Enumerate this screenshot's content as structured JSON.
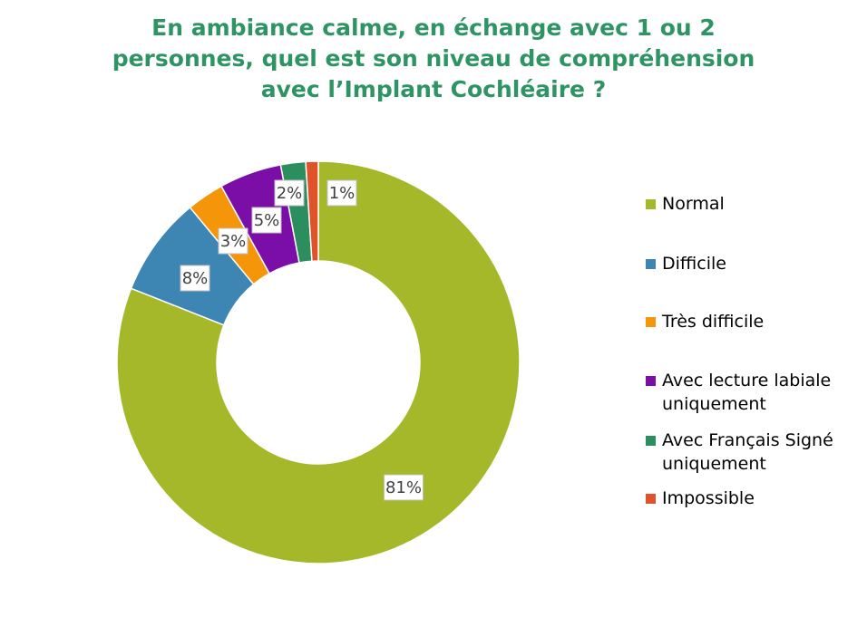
{
  "title_lines": [
    "En ambiance calme, en échange avec 1 ou 2",
    "personnes, quel est son niveau de compréhension",
    "avec l’Implant Cochléaire ?"
  ],
  "chart_data": {
    "type": "pie",
    "donut": true,
    "legend_position": "right",
    "slices": [
      {
        "label": "Normal",
        "value": 81,
        "display": "81%",
        "color": "#a5b82a"
      },
      {
        "label": "Difficile",
        "value": 8,
        "display": "8%",
        "color": "#3d86b4"
      },
      {
        "label": "Très difficile",
        "value": 3,
        "display": "3%",
        "color": "#f5960a"
      },
      {
        "label": "Avec lecture labiale uniquement",
        "value": 5,
        "display": "5%",
        "color": "#7a0ea6"
      },
      {
        "label": "Avec Français Signé uniquement",
        "value": 2,
        "display": "2%",
        "color": "#2c8e5f"
      },
      {
        "label": "Impossible",
        "value": 1,
        "display": "1%",
        "color": "#e0522a"
      }
    ]
  },
  "legend": [
    {
      "lines": [
        "Normal"
      ],
      "color": "#a5b82a"
    },
    {
      "lines": [
        "Difficile"
      ],
      "color": "#3d86b4"
    },
    {
      "lines": [
        "Très difficile"
      ],
      "color": "#f5960a"
    },
    {
      "lines": [
        "Avec lecture labiale",
        "uniquement"
      ],
      "color": "#7a0ea6"
    },
    {
      "lines": [
        "Avec Français Signé",
        "uniquement"
      ],
      "color": "#2c8e5f"
    },
    {
      "lines": [
        "Impossible"
      ],
      "color": "#e0522a"
    }
  ]
}
